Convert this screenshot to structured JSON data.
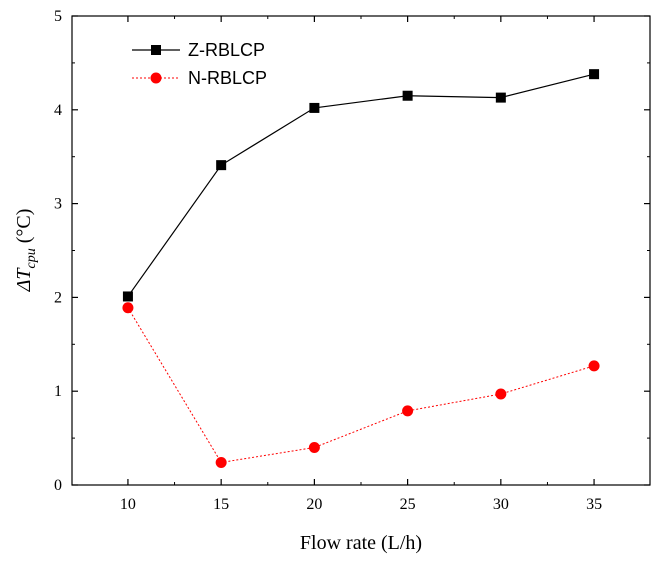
{
  "chart_data": {
    "type": "line",
    "x": [
      10,
      15,
      20,
      25,
      30,
      35
    ],
    "xlim": [
      7,
      38
    ],
    "ylim": [
      0,
      5
    ],
    "xticks": [
      10,
      15,
      20,
      25,
      30,
      35
    ],
    "yticks": [
      0,
      1,
      2,
      3,
      4,
      5
    ],
    "xlabel": "Flow rate (L/h)",
    "ylabel": {
      "prefix": "ΔT",
      "subscript": "cpu",
      "unit": " (°C)"
    },
    "grid": false,
    "legend_position": "top-left",
    "series": [
      {
        "name": "Z-RBLCP",
        "values": [
          2.01,
          3.41,
          4.02,
          4.15,
          4.13,
          4.38
        ],
        "color": "#000000",
        "marker": "square",
        "line_style": "solid"
      },
      {
        "name": "N-RBLCP",
        "values": [
          1.89,
          0.24,
          0.4,
          0.79,
          0.97,
          1.27
        ],
        "color": "#ff0000",
        "marker": "circle",
        "line_style": "dotted"
      }
    ]
  }
}
